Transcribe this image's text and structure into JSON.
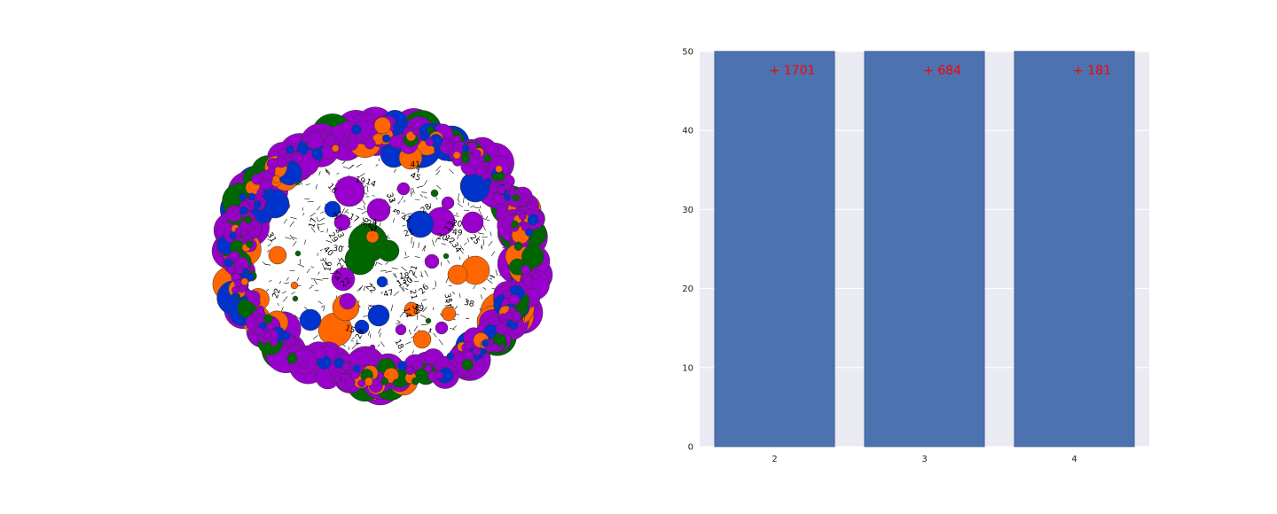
{
  "network_graph": {
    "node_colors": [
      "#9900cc",
      "#0033cc",
      "#006600",
      "#ff6600"
    ],
    "edge_color": "#000000",
    "visible_node_labels": [
      "15",
      "24",
      "18",
      "20",
      "21",
      "22",
      "47",
      "14",
      "49",
      "16",
      "42",
      "13",
      "33",
      "26",
      "19",
      "39",
      "20",
      "35",
      "38",
      "17",
      "21",
      "3",
      "41",
      "29",
      "27",
      "9",
      "10",
      "17",
      "28",
      "22",
      "34",
      "45",
      "12",
      "25",
      "19",
      "16",
      "30",
      "37",
      "29",
      "40",
      "31",
      "13",
      "47",
      "23",
      "18",
      "14",
      "21",
      "36",
      "17",
      "22"
    ]
  },
  "chart_data": {
    "type": "bar",
    "categories": [
      "2",
      "3",
      "4"
    ],
    "values": [
      50,
      50,
      50
    ],
    "annotations": [
      "+ 1701",
      "+ 684",
      "+ 181"
    ],
    "ylim": [
      0,
      50
    ],
    "yticks": [
      "0",
      "10",
      "20",
      "30",
      "40",
      "50"
    ],
    "title": "",
    "xlabel": "",
    "ylabel": "",
    "grid": true,
    "bar_color": "#4c72b0",
    "background_color": "#eaeaf2",
    "annotation_color": "#ff0000"
  }
}
